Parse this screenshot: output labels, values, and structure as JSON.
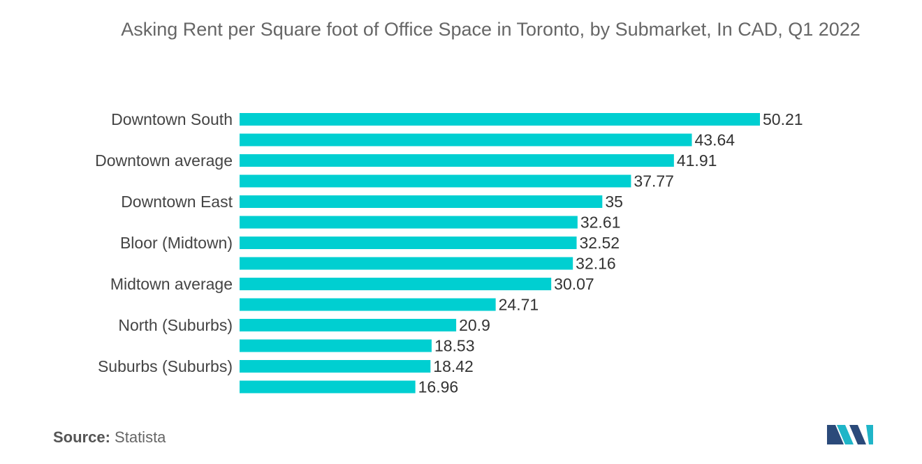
{
  "chart_data": {
    "type": "bar",
    "orientation": "horizontal",
    "title": "Asking Rent per Square foot of Office Space in Toronto, by Submarket, In CAD, Q1 2022",
    "categories": [
      "Downtown South",
      "",
      "Downtown average",
      "",
      "Downtown East",
      "",
      "Bloor (Midtown)",
      "",
      "Midtown average",
      "",
      "North (Suburbs)",
      "",
      "Suburbs (Suburbs)",
      ""
    ],
    "values": [
      50.21,
      43.64,
      41.91,
      37.77,
      35,
      32.61,
      32.52,
      32.16,
      30.07,
      24.71,
      20.9,
      18.53,
      18.42,
      16.96
    ],
    "value_labels": [
      "50.21",
      "43.64",
      "41.91",
      "37.77",
      "35",
      "32.61",
      "32.52",
      "32.16",
      "30.07",
      "24.71",
      "20.9",
      "18.53",
      "18.42",
      "16.96"
    ],
    "xlim": [
      0,
      50.21
    ],
    "grid": false,
    "bar_color": "#00cfd1"
  },
  "source": {
    "label": "Source:",
    "value": "Statista"
  },
  "logo": {
    "icon": "mordor-intelligence-logo",
    "colors": [
      "#2b4a7a",
      "#1fb5c8"
    ]
  }
}
